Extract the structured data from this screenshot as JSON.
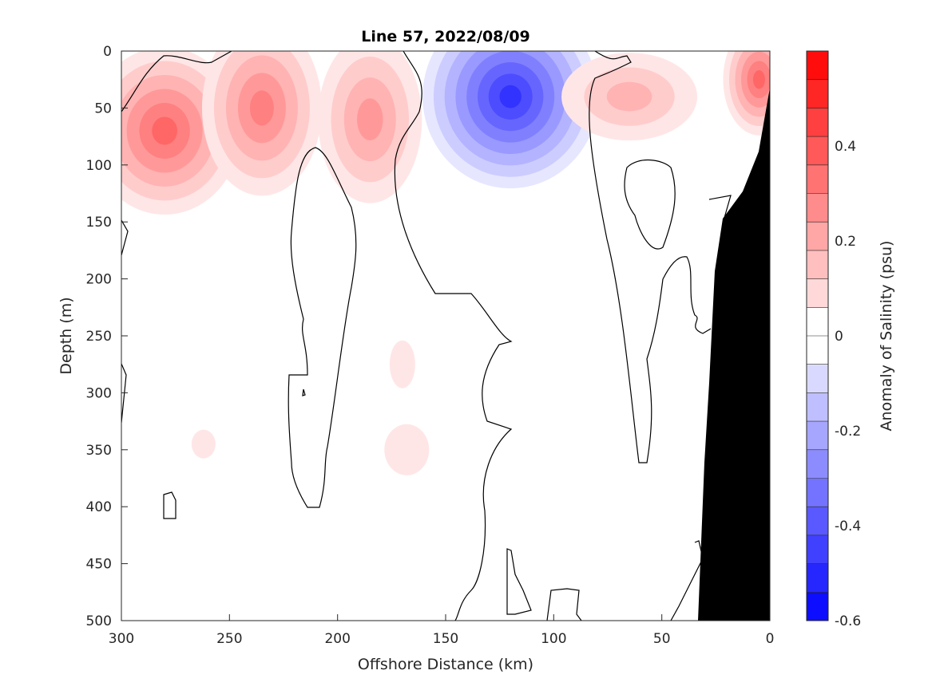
{
  "chart_data": {
    "type": "heatmap",
    "title": "Line 57, 2022/08/09",
    "xlabel": "Offshore Distance (km)",
    "ylabel": "Depth (m)",
    "colorbar_label": "Anomaly of Salinity (psu)",
    "xlim": [
      300,
      0
    ],
    "ylim": [
      0,
      500
    ],
    "x_reversed": true,
    "y_reversed": true,
    "x_ticks": [
      "300",
      "250",
      "200",
      "150",
      "100",
      "50",
      "0"
    ],
    "y_ticks": [
      "0",
      "50",
      "100",
      "150",
      "200",
      "250",
      "300",
      "350",
      "400",
      "450",
      "500"
    ],
    "colorbar": {
      "range": [
        -0.6,
        0.6
      ],
      "ticks": [
        "0.4",
        "0.2",
        "0",
        "-0.2",
        "-0.4",
        "-0.6"
      ],
      "tick_values": [
        0.4,
        0.2,
        0,
        -0.2,
        -0.4,
        -0.6
      ],
      "levels": 20,
      "negative_color": "#0000ff",
      "positive_color": "#ff0000",
      "neutral_color": "#ffffff"
    },
    "grid": false,
    "anomalies": [
      {
        "x": 280,
        "y": 70,
        "value": 0.35
      },
      {
        "x": 235,
        "y": 50,
        "value": 0.28
      },
      {
        "x": 185,
        "y": 60,
        "value": 0.22
      },
      {
        "x": 120,
        "y": 40,
        "value": -0.5
      },
      {
        "x": 65,
        "y": 40,
        "value": 0.15
      },
      {
        "x": 5,
        "y": 25,
        "value": 0.35
      },
      {
        "x": 170,
        "y": 275,
        "value": 0.06
      },
      {
        "x": 168,
        "y": 350,
        "value": 0.07
      },
      {
        "x": 262,
        "y": 345,
        "value": 0.06
      }
    ],
    "bathymetry_color": "#000000"
  }
}
